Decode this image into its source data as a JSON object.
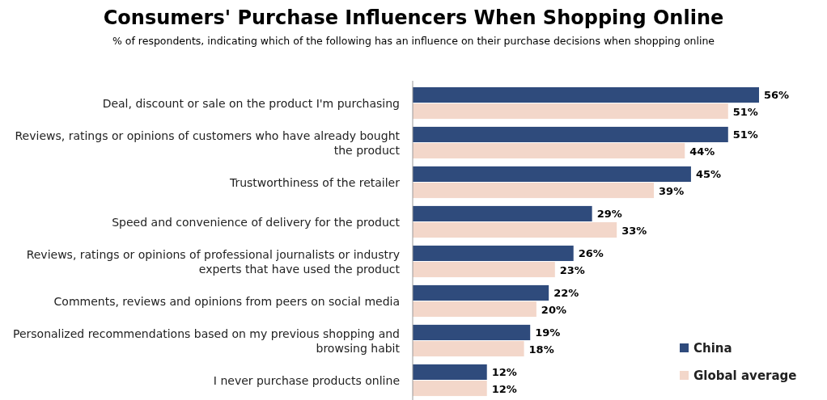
{
  "chart_data": {
    "type": "bar",
    "orientation": "horizontal",
    "relative": false,
    "title": "Consumers' Purchase Influencers When Shopping Online",
    "subtitle": "% of respondents, indicating which of the following has an influence on their purchase decisions when shopping online",
    "categories": [
      "Deal, discount or sale on the product I'm purchasing",
      "Reviews, ratings or opinions of customers who have already bought the product",
      "Trustworthiness of the retailer",
      "Speed and convenience of delivery for the product",
      "Reviews, ratings or opinions of professional journalists or industry experts that have used the product",
      "Comments, reviews and opinions from peers on social media",
      "Personalized recommendations based on my previous shopping and browsing habit",
      "I never purchase products online"
    ],
    "series": [
      {
        "name": "China",
        "color": "#2f4b7c",
        "values": [
          56,
          51,
          45,
          29,
          26,
          22,
          19,
          12
        ],
        "value_labels": [
          "56%",
          "51%",
          "45%",
          "29%",
          "26%",
          "22%",
          "19%",
          "12%"
        ]
      },
      {
        "name": "Global average",
        "color": "#f3d7ca",
        "values": [
          51,
          44,
          39,
          33,
          23,
          20,
          18,
          12
        ],
        "value_labels": [
          "51%",
          "44%",
          "39%",
          "33%",
          "23%",
          "20%",
          "18%",
          "12%"
        ]
      }
    ],
    "legend": "bottom right"
  }
}
